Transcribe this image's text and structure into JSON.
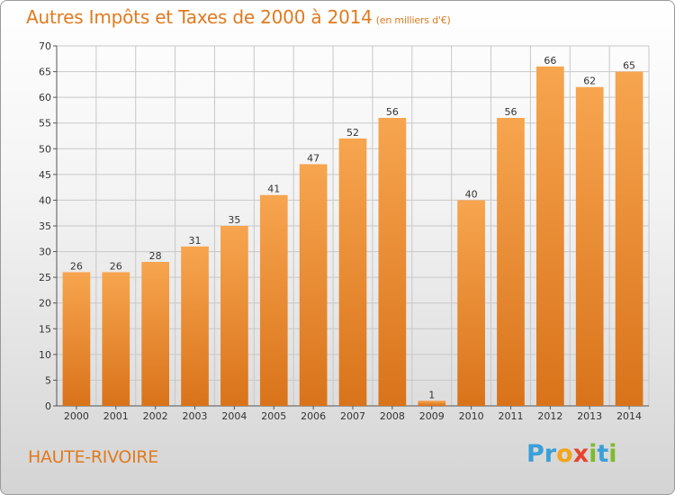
{
  "title": "Autres Impôts et Taxes de 2000 à 2014",
  "title_unit": "(en milliers d'€)",
  "commune": "HAUTE-RIVOIRE",
  "logo": {
    "text": "Proxiti",
    "letters": [
      {
        "ch": "P",
        "color": "#3a9fd8"
      },
      {
        "ch": "r",
        "color": "#3a9fd8"
      },
      {
        "ch": "o",
        "color": "#f2a51a"
      },
      {
        "ch": "x",
        "color": "#e8432c"
      },
      {
        "ch": "i",
        "color": "#7dbb2f"
      },
      {
        "ch": "t",
        "color": "#3a9fd8"
      },
      {
        "ch": "i",
        "color": "#7dbb2f"
      }
    ]
  },
  "colors": {
    "bar_light": "#f7a54f",
    "bar_dark": "#d9731a",
    "accent": "#e07a1f",
    "grid": "#c8c8c8"
  },
  "chart_data": {
    "type": "bar",
    "categories": [
      "2000",
      "2001",
      "2002",
      "2003",
      "2004",
      "2005",
      "2006",
      "2007",
      "2008",
      "2009",
      "2010",
      "2011",
      "2012",
      "2013",
      "2014"
    ],
    "values": [
      26,
      26,
      28,
      31,
      35,
      41,
      47,
      52,
      56,
      1,
      40,
      56,
      66,
      62,
      65
    ],
    "title": "Autres Impôts et Taxes de 2000 à 2014",
    "xlabel": "",
    "ylabel": "",
    "ylim": [
      0,
      70
    ],
    "yticks": [
      0,
      5,
      10,
      15,
      20,
      25,
      30,
      35,
      40,
      45,
      50,
      55,
      60,
      65,
      70
    ],
    "grid": true,
    "data_labels": true
  }
}
